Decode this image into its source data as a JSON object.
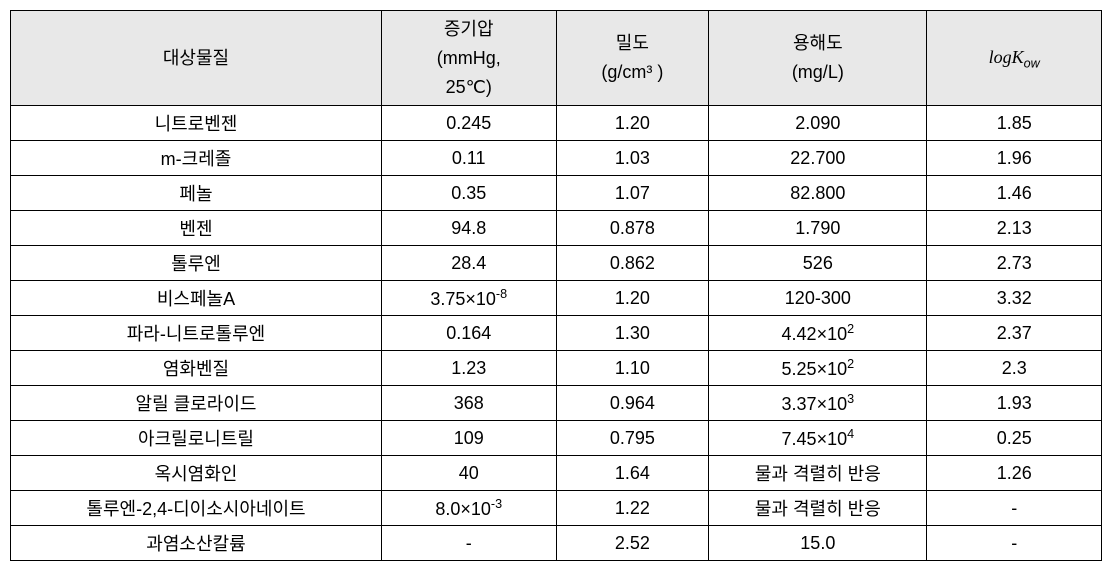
{
  "table": {
    "type": "table",
    "background_color": "#ffffff",
    "header_bg_color": "#e8e8e8",
    "border_color": "#000000",
    "font_family": "Malgun Gothic",
    "header_fontsize": 18,
    "cell_fontsize": 18,
    "columns": [
      {
        "key": "substance",
        "label": "대상물질",
        "width_pct": 34,
        "align": "center"
      },
      {
        "key": "vapor_pressure",
        "label_line1": "증기압",
        "label_line2": "(mmHg,",
        "label_line3": "25℃)",
        "width_pct": 16,
        "align": "center"
      },
      {
        "key": "density",
        "label_line1": "밀도",
        "label_line2": "(g/cm³ )",
        "width_pct": 14,
        "align": "center"
      },
      {
        "key": "solubility",
        "label_line1": "용해도",
        "label_line2": "(mg/L)",
        "width_pct": 20,
        "align": "center"
      },
      {
        "key": "logk",
        "label_prefix": "logK",
        "label_sub": "ow",
        "width_pct": 16,
        "align": "center"
      }
    ],
    "rows": [
      {
        "substance": "니트로벤젠",
        "vapor_pressure": "0.245",
        "density": "1.20",
        "solubility": "2.090",
        "logk": "1.85"
      },
      {
        "substance": "m-크레졸",
        "vapor_pressure": "0.11",
        "density": "1.03",
        "solubility": "22.700",
        "logk": "1.96"
      },
      {
        "substance": "페놀",
        "vapor_pressure": "0.35",
        "density": "1.07",
        "solubility": "82.800",
        "logk": "1.46"
      },
      {
        "substance": "벤젠",
        "vapor_pressure": "94.8",
        "density": "0.878",
        "solubility": "1.790",
        "logk": "2.13"
      },
      {
        "substance": "톨루엔",
        "vapor_pressure": "28.4",
        "density": "0.862",
        "solubility": "526",
        "logk": "2.73"
      },
      {
        "substance": "비스페놀A",
        "vapor_pressure_base": "3.75×10",
        "vapor_pressure_exp": "-8",
        "density": "1.20",
        "solubility": "120-300",
        "logk": "3.32"
      },
      {
        "substance": "파라-니트로톨루엔",
        "vapor_pressure": "0.164",
        "density": "1.30",
        "solubility_base": "4.42×10",
        "solubility_exp": "2",
        "logk": "2.37"
      },
      {
        "substance": "염화벤질",
        "vapor_pressure": "1.23",
        "density": "1.10",
        "solubility_base": "5.25×10",
        "solubility_exp": "2",
        "logk": "2.3"
      },
      {
        "substance": "알릴 클로라이드",
        "vapor_pressure": "368",
        "density": "0.964",
        "solubility_base": "3.37×10",
        "solubility_exp": "3",
        "logk": "1.93"
      },
      {
        "substance": "아크릴로니트릴",
        "vapor_pressure": "109",
        "density": "0.795",
        "solubility_base": "7.45×10",
        "solubility_exp": "4",
        "logk": "0.25"
      },
      {
        "substance": "옥시염화인",
        "vapor_pressure": "40",
        "density": "1.64",
        "solubility": "물과 격렬히 반응",
        "logk": "1.26"
      },
      {
        "substance": "톨루엔-2,4-디이소시아네이트",
        "vapor_pressure_base": "8.0×10",
        "vapor_pressure_exp": "-3",
        "density": "1.22",
        "solubility": "물과 격렬히 반응",
        "logk": "-"
      },
      {
        "substance": "과염소산칼륨",
        "vapor_pressure": "-",
        "density": "2.52",
        "solubility": "15.0",
        "logk": "-"
      }
    ]
  }
}
